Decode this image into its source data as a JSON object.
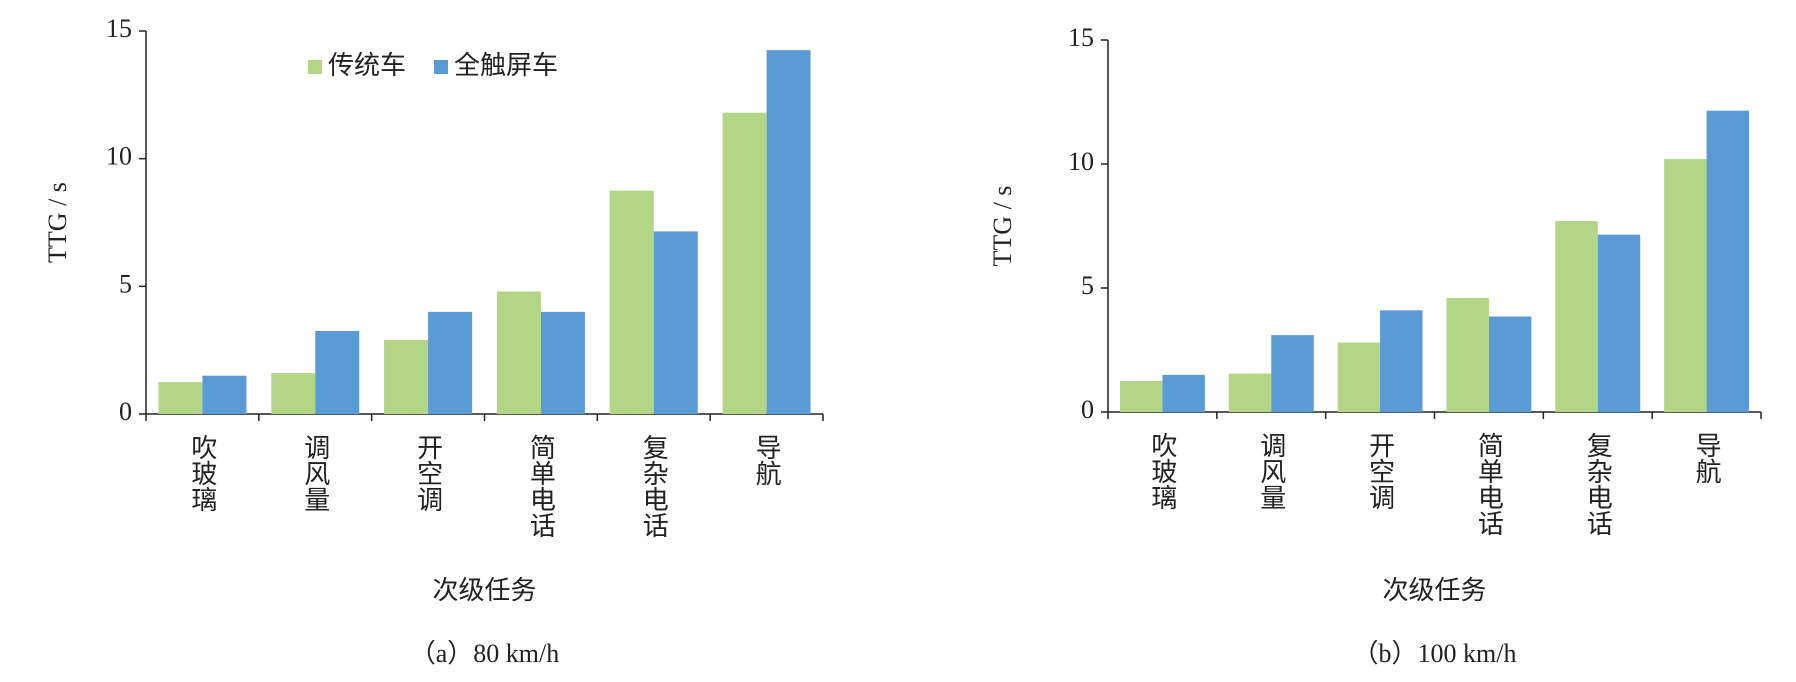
{
  "chart_data": [
    {
      "type": "bar",
      "caption": "（a）80 km/h",
      "x_label": "次级任务",
      "y_label": "TTG / s",
      "categories": [
        "吹玻璃",
        "调风量",
        "开空调",
        "简单电话",
        "复杂电话",
        "导航"
      ],
      "series": [
        {
          "name": "传统车",
          "color": "#b3d686",
          "values": [
            1.25,
            1.6,
            2.9,
            4.8,
            8.75,
            11.8
          ]
        },
        {
          "name": "全触屏车",
          "color": "#5b9bd5",
          "values": [
            1.5,
            3.25,
            4.0,
            4.0,
            7.15,
            14.25
          ]
        }
      ],
      "ylim": [
        0,
        15
      ],
      "yticks": [
        0,
        5,
        10,
        15
      ],
      "legend": "upper-left"
    },
    {
      "type": "bar",
      "caption": "（b）100 km/h",
      "x_label": "次级任务",
      "y_label": "TTG / s",
      "categories": [
        "吹玻璃",
        "调风量",
        "开空调",
        "简单电话",
        "复杂电话",
        "导航"
      ],
      "series": [
        {
          "name": "传统车",
          "color": "#b3d686",
          "values": [
            1.25,
            1.55,
            2.8,
            4.6,
            7.7,
            10.2
          ]
        },
        {
          "name": "全触屏车",
          "color": "#5b9bd5",
          "values": [
            1.5,
            3.1,
            4.1,
            3.85,
            7.15,
            12.15
          ]
        }
      ],
      "ylim": [
        0,
        15
      ],
      "yticks": [
        0,
        5,
        10,
        15
      ],
      "legend": "none"
    }
  ]
}
